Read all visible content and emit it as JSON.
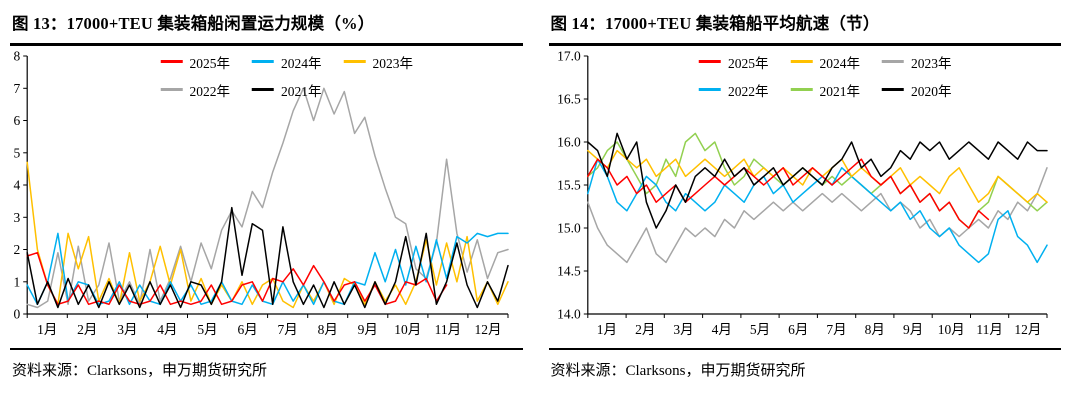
{
  "chart_data": [
    {
      "title": "图 13：17000+TEU 集装箱船闲置运力规模（%）",
      "source": "资料来源：Clarksons，申万期货研究所",
      "type": "line",
      "ylim": [
        0,
        8
      ],
      "ytick_values": [
        0,
        1,
        2,
        3,
        4,
        5,
        6,
        7,
        8
      ],
      "ytick_labels": [
        "0",
        "1",
        "2",
        "3",
        "4",
        "5",
        "6",
        "7",
        "8"
      ],
      "xtick_labels": [
        "1月",
        "2月",
        "3月",
        "4月",
        "5月",
        "6月",
        "7月",
        "8月",
        "9月",
        "10月",
        "11月",
        "12月"
      ],
      "n_points": 48,
      "grid": false,
      "legend_position": "top-center",
      "legend_rows": [
        [
          "2025年",
          "2024年",
          "2023年"
        ],
        [
          "2022年",
          "2021年"
        ]
      ],
      "series": [
        {
          "name": "2025年",
          "color": "#ff0000",
          "z": 4,
          "values": [
            1.8,
            1.9,
            0.9,
            0.3,
            0.4,
            0.9,
            0.3,
            0.4,
            0.3,
            0.9,
            0.4,
            0.3,
            0.4,
            0.9,
            0.3,
            0.4,
            0.3,
            0.4,
            0.9,
            0.3,
            0.4,
            0.9,
            1.0,
            0.4,
            1.1,
            1.0,
            1.4,
            0.9,
            1.5,
            1.0,
            0.4,
            0.9,
            1.0,
            0.4,
            0.9,
            0.3,
            0.4,
            1.0,
            0.9,
            1.1,
            0.4,
            0.9
          ]
        },
        {
          "name": "2024年",
          "color": "#00b0f0",
          "z": 3,
          "values": [
            0.9,
            0.3,
            1.0,
            2.5,
            0.4,
            1.0,
            0.9,
            0.3,
            0.4,
            1.0,
            0.3,
            0.9,
            0.4,
            0.3,
            1.0,
            0.4,
            0.9,
            0.3,
            0.4,
            1.0,
            0.4,
            0.3,
            0.9,
            0.4,
            0.3,
            1.0,
            0.4,
            0.9,
            0.3,
            1.0,
            0.4,
            0.3,
            1.0,
            0.9,
            1.9,
            1.0,
            2.0,
            0.9,
            2.1,
            1.0,
            2.3,
            1.1,
            2.4,
            2.2,
            2.5,
            2.4,
            2.5,
            2.5
          ]
        },
        {
          "name": "2023年",
          "color": "#ffc000",
          "z": 2,
          "values": [
            4.7,
            2.0,
            0.9,
            0.3,
            2.5,
            1.4,
            2.4,
            0.4,
            1.1,
            0.3,
            1.9,
            0.4,
            1.0,
            2.1,
            0.9,
            2.0,
            0.4,
            1.1,
            0.3,
            0.9,
            0.4,
            1.0,
            0.3,
            0.9,
            1.1,
            0.4,
            0.2,
            0.9,
            0.4,
            1.0,
            0.3,
            1.1,
            0.9,
            0.3,
            1.0,
            0.4,
            0.9,
            0.3,
            1.0,
            2.3,
            0.9,
            2.2,
            1.0,
            2.4,
            0.4,
            1.0,
            0.3,
            1.0
          ]
        },
        {
          "name": "2022年",
          "color": "#a6a6a6",
          "z": 1,
          "values": [
            0.3,
            0.2,
            0.4,
            1.9,
            0.3,
            2.1,
            0.4,
            0.9,
            2.2,
            0.4,
            1.0,
            0.3,
            2.0,
            0.4,
            1.1,
            2.1,
            1.0,
            2.2,
            1.4,
            2.6,
            3.2,
            2.7,
            3.8,
            3.3,
            4.4,
            5.3,
            6.3,
            7.0,
            6.0,
            7.0,
            6.2,
            6.9,
            5.6,
            6.1,
            4.9,
            3.9,
            3.0,
            2.8,
            1.4,
            1.1,
            2.2,
            4.8,
            2.5,
            1.3,
            2.3,
            1.1,
            1.9,
            2.0
          ]
        },
        {
          "name": "2021年",
          "color": "#000000",
          "z": 5,
          "values": [
            1.9,
            0.3,
            1.0,
            0.2,
            1.1,
            0.3,
            0.9,
            0.2,
            1.0,
            0.3,
            0.9,
            0.2,
            1.0,
            0.3,
            0.9,
            0.2,
            1.0,
            0.9,
            0.3,
            1.0,
            3.3,
            1.2,
            2.8,
            2.6,
            0.3,
            2.7,
            1.0,
            0.3,
            0.9,
            0.2,
            1.0,
            0.3,
            0.9,
            0.2,
            1.0,
            0.3,
            1.0,
            2.4,
            0.9,
            2.5,
            0.3,
            1.0,
            2.2,
            0.9,
            0.2,
            1.0,
            0.4,
            1.5
          ]
        }
      ]
    },
    {
      "title": "图 14：17000+TEU 集装箱船平均航速（节）",
      "source": "资料来源：Clarksons，申万期货研究所",
      "type": "line",
      "ylim": [
        14.0,
        17.0
      ],
      "ytick_values": [
        14.0,
        14.5,
        15.0,
        15.5,
        16.0,
        16.5,
        17.0
      ],
      "ytick_labels": [
        "14.0",
        "14.5",
        "15.0",
        "15.5",
        "16.0",
        "16.5",
        "17.0"
      ],
      "xtick_labels": [
        "1月",
        "2月",
        "3月",
        "4月",
        "5月",
        "6月",
        "7月",
        "8月",
        "9月",
        "10月",
        "11月",
        "12月"
      ],
      "n_points": 48,
      "grid": false,
      "legend_position": "top-center",
      "legend_rows": [
        [
          "2025年",
          "2024年",
          "2023年"
        ],
        [
          "2022年",
          "2021年",
          "2020年"
        ]
      ],
      "series": [
        {
          "name": "2025年",
          "color": "#ff0000",
          "z": 5,
          "values": [
            15.6,
            15.8,
            15.7,
            15.5,
            15.6,
            15.4,
            15.5,
            15.3,
            15.4,
            15.5,
            15.3,
            15.4,
            15.5,
            15.6,
            15.5,
            15.6,
            15.7,
            15.6,
            15.5,
            15.6,
            15.7,
            15.5,
            15.6,
            15.7,
            15.6,
            15.5,
            15.6,
            15.7,
            15.8,
            15.6,
            15.5,
            15.6,
            15.4,
            15.5,
            15.3,
            15.4,
            15.2,
            15.3,
            15.1,
            15.0,
            15.2,
            15.1
          ]
        },
        {
          "name": "2024年",
          "color": "#ffc000",
          "z": 4,
          "values": [
            15.9,
            15.8,
            15.7,
            15.9,
            15.8,
            15.7,
            15.8,
            15.6,
            15.7,
            15.8,
            15.6,
            15.7,
            15.8,
            15.7,
            15.6,
            15.7,
            15.8,
            15.6,
            15.7,
            15.6,
            15.7,
            15.6,
            15.5,
            15.7,
            15.6,
            15.7,
            15.8,
            15.6,
            15.7,
            15.6,
            15.5,
            15.6,
            15.7,
            15.5,
            15.6,
            15.5,
            15.4,
            15.6,
            15.7,
            15.5,
            15.3,
            15.4,
            15.6,
            15.5,
            15.4,
            15.3,
            15.4,
            15.3
          ]
        },
        {
          "name": "2023年",
          "color": "#a6a6a6",
          "z": 1,
          "values": [
            15.3,
            15.0,
            14.8,
            14.7,
            14.6,
            14.8,
            15.0,
            14.7,
            14.6,
            14.8,
            15.0,
            14.9,
            15.0,
            14.9,
            15.1,
            15.0,
            15.2,
            15.1,
            15.2,
            15.3,
            15.2,
            15.3,
            15.2,
            15.3,
            15.4,
            15.3,
            15.4,
            15.3,
            15.2,
            15.3,
            15.4,
            15.2,
            15.3,
            15.2,
            15.0,
            15.1,
            14.9,
            15.0,
            14.9,
            15.0,
            15.1,
            15.0,
            15.2,
            15.1,
            15.3,
            15.2,
            15.4,
            15.7
          ]
        },
        {
          "name": "2022年",
          "color": "#00b0f0",
          "z": 3,
          "values": [
            15.4,
            15.8,
            15.6,
            15.3,
            15.2,
            15.4,
            15.6,
            15.5,
            15.3,
            15.2,
            15.4,
            15.3,
            15.2,
            15.3,
            15.5,
            15.4,
            15.3,
            15.5,
            15.6,
            15.4,
            15.5,
            15.3,
            15.4,
            15.5,
            15.6,
            15.5,
            15.7,
            15.6,
            15.5,
            15.4,
            15.3,
            15.2,
            15.3,
            15.1,
            15.2,
            15.0,
            14.9,
            15.0,
            14.8,
            14.7,
            14.6,
            14.7,
            15.1,
            15.2,
            14.9,
            14.8,
            14.6,
            14.8
          ]
        },
        {
          "name": "2021年",
          "color": "#92d050",
          "z": 2,
          "values": [
            15.6,
            15.7,
            15.9,
            16.0,
            15.8,
            15.6,
            15.4,
            15.5,
            15.8,
            15.6,
            16.0,
            16.1,
            15.9,
            16.0,
            15.7,
            15.5,
            15.6,
            15.8,
            15.7,
            15.6,
            15.5,
            15.6,
            15.7,
            15.6,
            15.5,
            15.6,
            15.5,
            15.6,
            15.5,
            15.4,
            15.5,
            15.6,
            15.4,
            15.5,
            15.3,
            15.4,
            15.2,
            15.3,
            15.1,
            15.0,
            15.2,
            15.3,
            15.6,
            15.5,
            15.4,
            15.3,
            15.2,
            15.3
          ]
        },
        {
          "name": "2020年",
          "color": "#000000",
          "z": 6,
          "values": [
            16.0,
            15.9,
            15.6,
            16.1,
            15.8,
            16.0,
            15.3,
            15.0,
            15.2,
            15.5,
            15.3,
            15.6,
            15.7,
            15.6,
            15.8,
            15.6,
            15.7,
            15.5,
            15.6,
            15.7,
            15.5,
            15.6,
            15.7,
            15.6,
            15.5,
            15.7,
            15.8,
            16.0,
            15.7,
            15.8,
            15.6,
            15.7,
            15.9,
            15.8,
            16.0,
            15.9,
            16.0,
            15.8,
            15.9,
            16.0,
            15.9,
            15.8,
            16.0,
            15.9,
            15.8,
            16.0,
            15.9,
            15.9
          ]
        }
      ]
    }
  ]
}
